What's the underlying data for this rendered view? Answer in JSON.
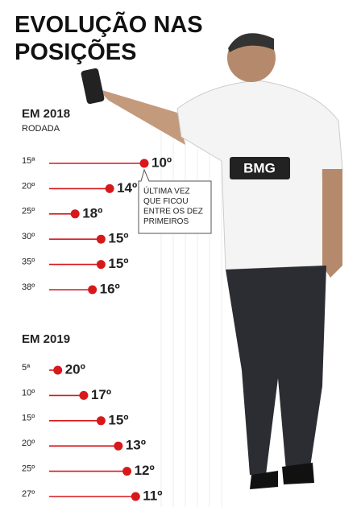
{
  "title": [
    "EVOLUÇÃO NAS",
    "POSIÇÕES"
  ],
  "chart_data": [
    {
      "type": "lollipop",
      "title": "EM 2018",
      "y_label": "RODADA",
      "categories": [
        "15ª",
        "20º",
        "25º",
        "30º",
        "35º",
        "38º"
      ],
      "values": [
        10,
        14,
        18,
        15,
        15,
        16
      ],
      "value_labels": [
        "10º",
        "14º",
        "18º",
        "15º",
        "15º",
        "16º"
      ],
      "color": "#d7191c",
      "xlim": [
        21,
        9
      ],
      "annotation": [
        "ÚLTIMA VEZ",
        "QUE FICOU",
        "ENTRE OS DEZ",
        "PRIMEIROS"
      ]
    },
    {
      "type": "lollipop",
      "title": "EM 2019",
      "categories": [
        "5ª",
        "10º",
        "15º",
        "20º",
        "25º",
        "27º"
      ],
      "values": [
        20,
        17,
        15,
        13,
        12,
        11
      ],
      "value_labels": [
        "20º",
        "17º",
        "15º",
        "13º",
        "12º",
        "11º"
      ],
      "color": "#d7191c",
      "xlim": [
        21,
        9
      ]
    }
  ]
}
